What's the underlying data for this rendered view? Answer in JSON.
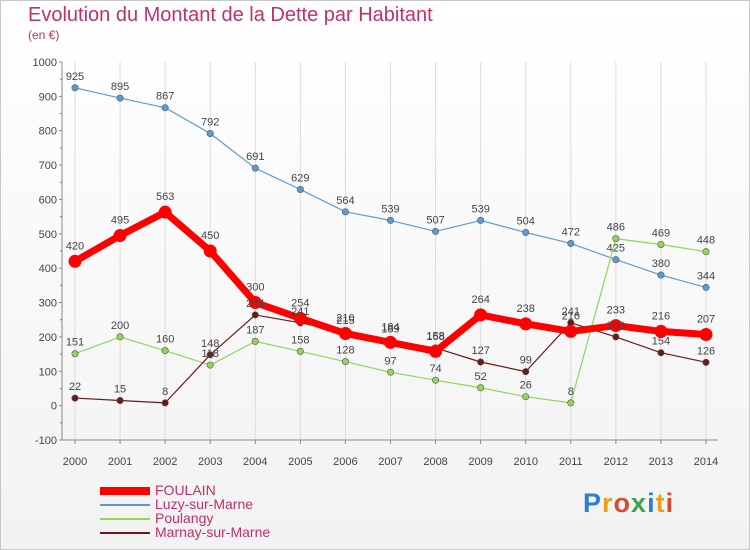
{
  "chart_data": {
    "type": "line",
    "title": "Evolution du Montant de la Dette par Habitant",
    "subtitle": "(en €)",
    "x": [
      2000,
      2001,
      2002,
      2003,
      2004,
      2005,
      2006,
      2007,
      2008,
      2009,
      2010,
      2011,
      2012,
      2013,
      2014
    ],
    "ylim": [
      -100,
      1000
    ],
    "yticks": [
      -100,
      0,
      100,
      200,
      300,
      400,
      500,
      600,
      700,
      800,
      900,
      1000
    ],
    "grid": "vertical",
    "legend_position": "bottom-left",
    "series": [
      {
        "name": "FOULAIN",
        "color": "#ff0000",
        "values": [
          420,
          495,
          563,
          450,
          300,
          254,
          210,
          184,
          158,
          264,
          238,
          216,
          233,
          216,
          207
        ]
      },
      {
        "name": "Luzy-sur-Marne",
        "color": "#5b9bd5",
        "values": [
          925,
          895,
          867,
          792,
          691,
          629,
          564,
          539,
          507,
          539,
          504,
          472,
          425,
          380,
          344
        ]
      },
      {
        "name": "Poulangy",
        "color": "#90d65a",
        "values": [
          151,
          200,
          160,
          118,
          187,
          158,
          128,
          97,
          74,
          52,
          26,
          8,
          486,
          469,
          448
        ]
      },
      {
        "name": "Marnay-sur-Marne",
        "color": "#6b1a1a",
        "values": [
          22,
          15,
          8,
          148,
          264,
          241,
          215,
          189,
          168,
          127,
          99,
          241,
          200,
          154,
          126
        ]
      }
    ]
  },
  "logo": {
    "text": "Proxiti"
  }
}
